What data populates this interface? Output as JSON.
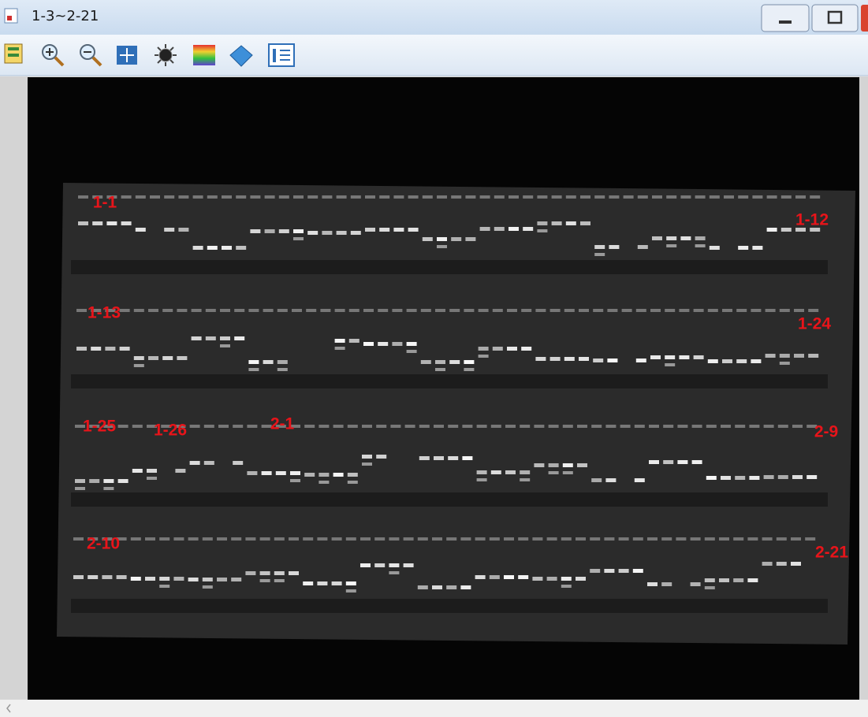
{
  "window": {
    "title": "1-3~2-21"
  },
  "gel": {
    "labels": [
      "1-1",
      "1-12",
      "1-13",
      "1-24",
      "1-25",
      "1-26",
      "2-1",
      "2-9",
      "2-10",
      "2-21"
    ]
  }
}
